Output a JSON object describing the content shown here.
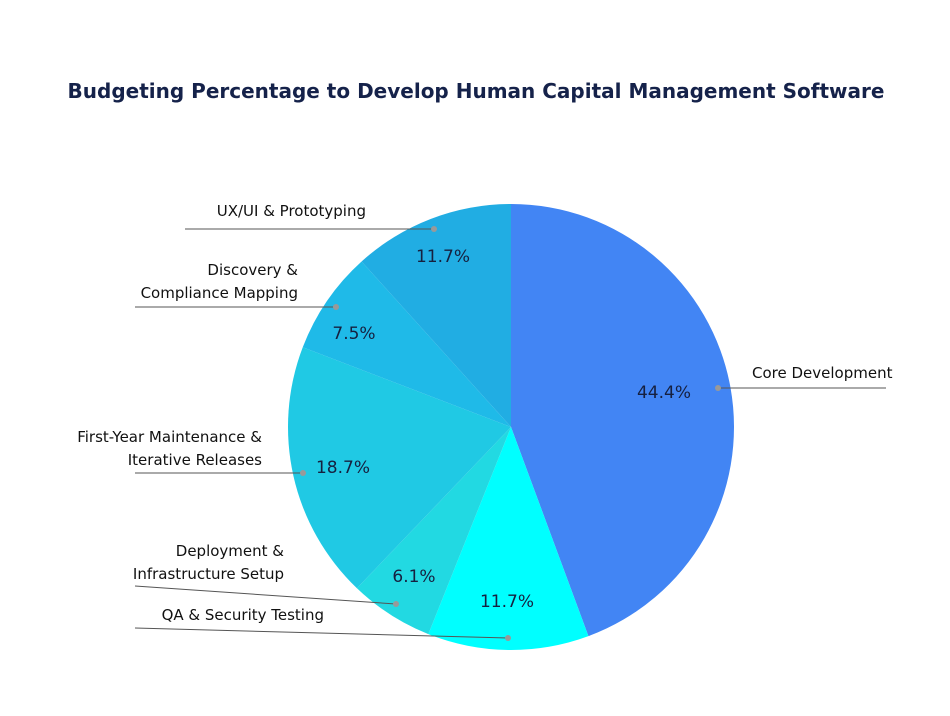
{
  "chart_data": {
    "type": "pie",
    "title": "Budgeting Percentage to Develop Human Capital Management Software",
    "slices": [
      {
        "label": "Core Development",
        "label_lines": [
          "Core Development"
        ],
        "value": 44.4,
        "value_label": "44.4%",
        "color": "#4285F4"
      },
      {
        "label": "QA & Security Testing",
        "label_lines": [
          "QA & Security Testing"
        ],
        "value": 11.7,
        "value_label": "11.7%",
        "color": "#00FFFF"
      },
      {
        "label": "Deployment & Infrastructure Setup",
        "label_lines": [
          "Deployment &",
          "Infrastructure Setup"
        ],
        "value": 6.1,
        "value_label": "6.1%",
        "color": "#22D9E2"
      },
      {
        "label": "First-Year Maintenance & Iterative Releases",
        "label_lines": [
          "First-Year Maintenance &",
          "Iterative Releases"
        ],
        "value": 18.7,
        "value_label": "18.7%",
        "color": "#20C9E4"
      },
      {
        "label": "Discovery & Compliance Mapping",
        "label_lines": [
          "Discovery &",
          "Compliance Mapping"
        ],
        "value": 7.5,
        "value_label": "7.5%",
        "color": "#1FBAE8"
      },
      {
        "label": "UX/UI & Prototyping",
        "label_lines": [
          "UX/UI & Prototyping"
        ],
        "value": 11.7,
        "value_label": "11.7%",
        "color": "#21ADE3"
      }
    ],
    "start_angle": "12 o'clock",
    "direction": "clockwise",
    "legend": "none (callout labels)"
  }
}
